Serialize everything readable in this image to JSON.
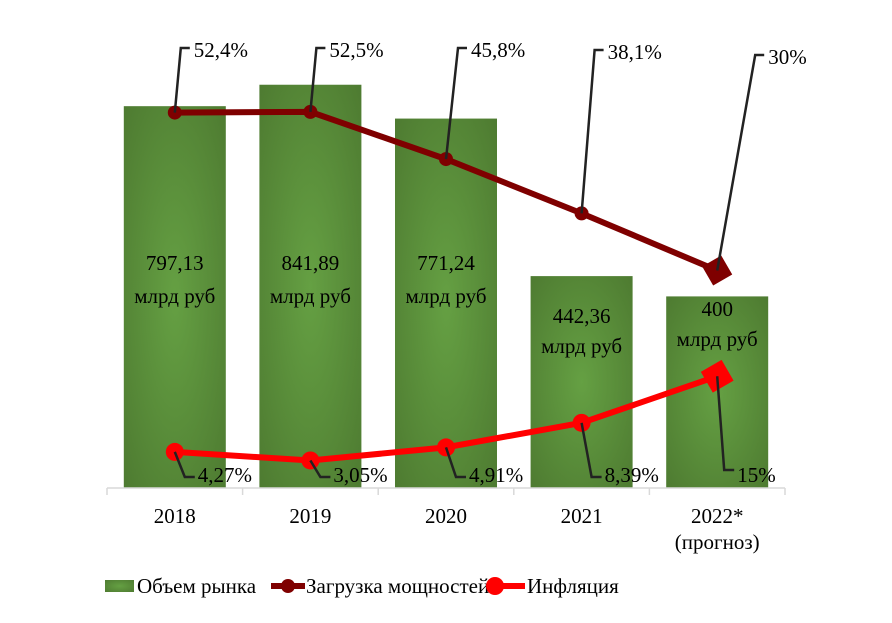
{
  "chart_data": {
    "type": "bar+line",
    "title": "",
    "categories": [
      "2018",
      "2019",
      "2020",
      "2021",
      "2022*\n(прогноз)"
    ],
    "category_lines": [
      [
        "2018"
      ],
      [
        "2019"
      ],
      [
        "2020"
      ],
      [
        "2021"
      ],
      [
        "2022*",
        "(прогноз)"
      ]
    ],
    "series": [
      {
        "name": "Объем рынка",
        "type": "bar",
        "values": [
          797.13,
          841.89,
          771.24,
          442.36,
          400
        ],
        "labels": [
          [
            "797,13",
            "млрд руб"
          ],
          [
            "841,89",
            "млрд руб"
          ],
          [
            "771,24",
            "млрд руб"
          ],
          [
            "442,36",
            "млрд руб"
          ],
          [
            "400",
            "млрд руб"
          ]
        ],
        "color": "#548235"
      },
      {
        "name": "Загрузка мощностей",
        "type": "line",
        "unit": "%",
        "values": [
          52.4,
          52.5,
          45.8,
          38.1,
          30
        ],
        "labels": [
          "52,4%",
          "52,5%",
          "45,8%",
          "38,1%",
          "30%"
        ],
        "color": "#7f0000",
        "last_marker": "diamond"
      },
      {
        "name": "Инфляция",
        "type": "line",
        "unit": "%",
        "values": [
          4.27,
          3.05,
          4.91,
          8.39,
          15
        ],
        "labels": [
          "4,27%",
          "3,05%",
          "4,91%",
          "8,39%",
          "15%"
        ],
        "color": "#ff0000",
        "last_marker": "diamond"
      }
    ],
    "legend_position": "bottom",
    "grid": false
  }
}
